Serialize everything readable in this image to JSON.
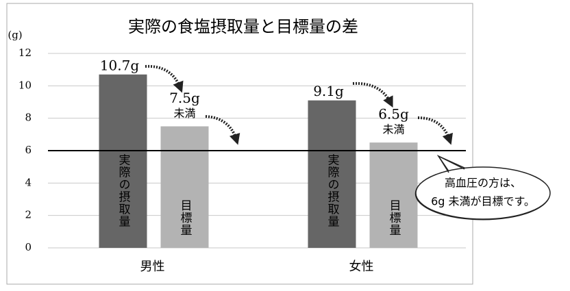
{
  "chart_data": {
    "type": "bar",
    "title": "実際の食塩摂取量と目標量の差",
    "y_unit": "(g)",
    "categories": [
      "男性",
      "女性"
    ],
    "series": [
      {
        "name": "実際の摂取量",
        "color": "#666666",
        "values": [
          10.7,
          9.1
        ],
        "value_labels": [
          [
            "10.7g"
          ],
          [
            "9.1g"
          ]
        ]
      },
      {
        "name": "目標量",
        "color": "#b3b3b3",
        "values": [
          7.5,
          6.5
        ],
        "value_labels": [
          [
            "7.5g",
            "未満"
          ],
          [
            "6.5g",
            "未満"
          ]
        ]
      }
    ],
    "ylim": [
      0,
      12
    ],
    "yticks": [
      0,
      2,
      4,
      6,
      8,
      10,
      12
    ],
    "grid": true,
    "reference_line": 6,
    "annotation": [
      "高血圧の方は、",
      "6g 未満が目標です。"
    ]
  }
}
